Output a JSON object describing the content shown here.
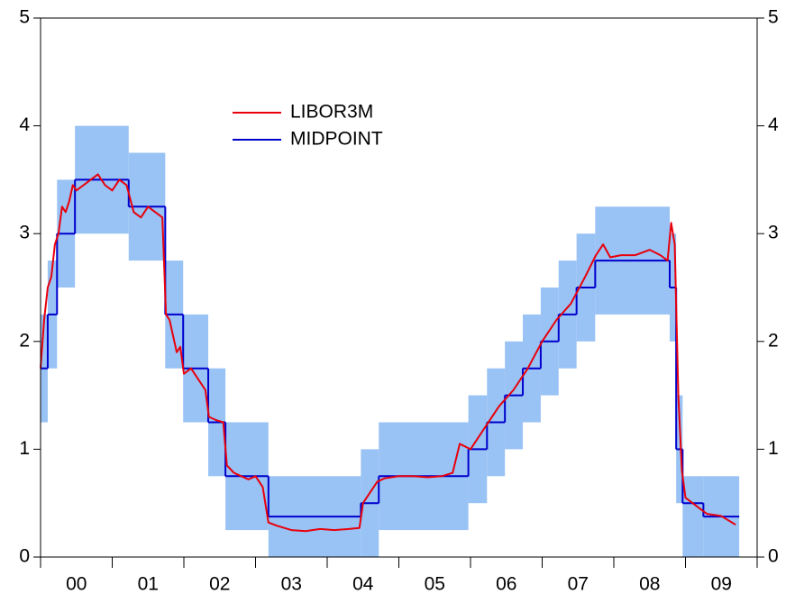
{
  "chart_data": {
    "type": "step-band",
    "series": [
      {
        "name": "LIBOR3M",
        "color": "#e8000b",
        "x": [
          2000.0,
          2000.05,
          2000.1,
          2000.15,
          2000.2,
          2000.25,
          2000.3,
          2000.35,
          2000.4,
          2000.45,
          2000.5,
          2000.6,
          2000.7,
          2000.8,
          2000.9,
          2001.0,
          2001.1,
          2001.2,
          2001.3,
          2001.4,
          2001.5,
          2001.6,
          2001.7,
          2001.75,
          2001.8,
          2001.9,
          2001.95,
          2002.0,
          2002.1,
          2002.2,
          2002.3,
          2002.35,
          2002.45,
          2002.55,
          2002.6,
          2002.7,
          2002.8,
          2002.9,
          2003.0,
          2003.1,
          2003.18,
          2003.3,
          2003.5,
          2003.7,
          2003.9,
          2004.1,
          2004.3,
          2004.45,
          2004.5,
          2004.6,
          2004.7,
          2004.8,
          2005.0,
          2005.2,
          2005.4,
          2005.6,
          2005.75,
          2005.85,
          2006.0,
          2006.2,
          2006.4,
          2006.6,
          2006.8,
          2007.0,
          2007.2,
          2007.4,
          2007.6,
          2007.75,
          2007.85,
          2007.95,
          2008.1,
          2008.3,
          2008.5,
          2008.65,
          2008.75,
          2008.8,
          2008.85,
          2008.9,
          2008.95,
          2009.0,
          2009.1,
          2009.3,
          2009.5,
          2009.7
        ],
        "values": [
          1.75,
          2.2,
          2.5,
          2.6,
          2.9,
          3.0,
          3.25,
          3.2,
          3.3,
          3.45,
          3.4,
          3.45,
          3.5,
          3.55,
          3.45,
          3.4,
          3.5,
          3.45,
          3.2,
          3.15,
          3.25,
          3.2,
          3.15,
          2.25,
          2.2,
          1.9,
          1.95,
          1.7,
          1.75,
          1.65,
          1.55,
          1.3,
          1.27,
          1.25,
          0.85,
          0.78,
          0.75,
          0.72,
          0.75,
          0.65,
          0.32,
          0.29,
          0.25,
          0.24,
          0.26,
          0.25,
          0.26,
          0.27,
          0.5,
          0.6,
          0.7,
          0.73,
          0.75,
          0.75,
          0.74,
          0.75,
          0.78,
          1.05,
          1.0,
          1.2,
          1.4,
          1.55,
          1.75,
          2.0,
          2.2,
          2.35,
          2.6,
          2.8,
          2.9,
          2.78,
          2.8,
          2.8,
          2.85,
          2.8,
          2.75,
          3.1,
          2.9,
          1.5,
          0.8,
          0.55,
          0.5,
          0.4,
          0.38,
          0.3
        ]
      },
      {
        "name": "MIDPOINT",
        "color": "#0000cc",
        "bins": [
          2000.0,
          2000.1,
          2000.23,
          2000.48,
          2001.23,
          2001.74,
          2001.99,
          2002.34,
          2002.58,
          2003.18,
          2004.47,
          2004.72,
          2005.97,
          2006.23,
          2006.48,
          2006.73,
          2006.98,
          2007.23,
          2007.48,
          2007.74,
          2008.78,
          2008.87,
          2008.96,
          2009.25,
          2009.75
        ],
        "values": [
          1.75,
          2.25,
          3.0,
          3.5,
          3.25,
          2.25,
          1.75,
          1.25,
          0.75,
          0.375,
          0.5,
          0.75,
          1.0,
          1.25,
          1.5,
          1.75,
          2.0,
          2.25,
          2.5,
          2.75,
          2.5,
          1.0,
          0.5,
          0.375
        ]
      }
    ],
    "band": {
      "color": "#99c2f5",
      "low": [
        1.25,
        1.75,
        2.5,
        3.0,
        2.75,
        1.75,
        1.25,
        0.75,
        0.25,
        0,
        0,
        0.25,
        0.5,
        0.75,
        1.0,
        1.25,
        1.5,
        1.75,
        2.0,
        2.25,
        2.0,
        0.5,
        0,
        0
      ],
      "high": [
        2.25,
        2.75,
        3.5,
        4.0,
        3.75,
        2.75,
        2.25,
        1.75,
        1.25,
        0.75,
        1.0,
        1.25,
        1.5,
        1.75,
        2.0,
        2.25,
        2.5,
        2.75,
        3.0,
        3.25,
        3.0,
        1.5,
        0.75,
        0.75
      ]
    },
    "xlim": [
      2000,
      2010
    ],
    "xtick_marks": [
      2000,
      2001,
      2002,
      2003,
      2004,
      2005,
      2006,
      2007,
      2008,
      2009,
      2010
    ],
    "xticks": [
      {
        "value": 2000.5,
        "label": "00"
      },
      {
        "value": 2001.5,
        "label": "01"
      },
      {
        "value": 2002.5,
        "label": "02"
      },
      {
        "value": 2003.5,
        "label": "03"
      },
      {
        "value": 2004.5,
        "label": "04"
      },
      {
        "value": 2005.5,
        "label": "05"
      },
      {
        "value": 2006.5,
        "label": "06"
      },
      {
        "value": 2007.5,
        "label": "07"
      },
      {
        "value": 2008.5,
        "label": "08"
      },
      {
        "value": 2009.5,
        "label": "09"
      }
    ],
    "ylim": [
      0,
      5
    ],
    "yticks": [
      0,
      1,
      2,
      3,
      4,
      5
    ],
    "y2lim": [
      0,
      5
    ],
    "y2ticks": [
      0,
      1,
      2,
      3,
      4,
      5
    ],
    "grid": false,
    "legend": "upper left"
  }
}
